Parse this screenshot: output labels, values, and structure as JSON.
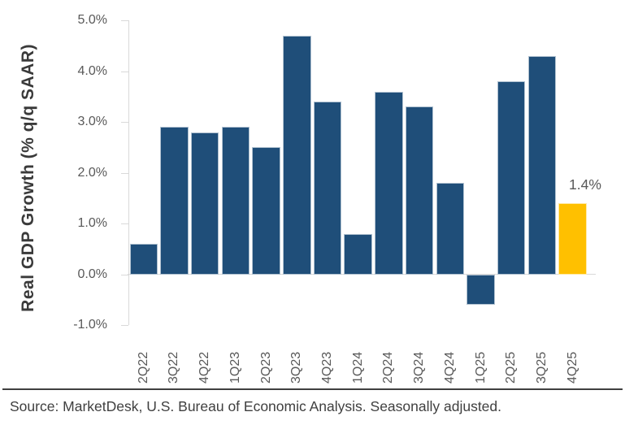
{
  "chart_data": {
    "type": "bar",
    "title": "",
    "xlabel": "",
    "ylabel": "Real GDP Growth (% q/q SAAR)",
    "categories": [
      "2Q22",
      "3Q22",
      "4Q22",
      "1Q23",
      "2Q23",
      "3Q23",
      "4Q23",
      "1Q24",
      "2Q24",
      "3Q24",
      "4Q24",
      "1Q25",
      "2Q25",
      "3Q25",
      "4Q25"
    ],
    "values": [
      0.6,
      2.9,
      2.8,
      2.9,
      2.5,
      4.7,
      3.4,
      0.8,
      3.6,
      3.3,
      1.8,
      -0.6,
      3.8,
      4.3,
      1.4
    ],
    "ylim": [
      -1.0,
      5.0
    ],
    "yticks": [
      5.0,
      4.0,
      3.0,
      2.0,
      1.0,
      0.0,
      -1.0
    ],
    "ytick_labels": [
      "5.0%",
      "4.0%",
      "3.0%",
      "2.0%",
      "1.0%",
      "0.0%",
      "-1.0%"
    ],
    "grid": false,
    "legend": null,
    "bar_color": "#1F4E79",
    "highlight_color": "#FFC000",
    "highlight_index": 14,
    "annotation": {
      "text": "1.4%",
      "target_category": "4Q25"
    }
  },
  "footer": {
    "source_text": "Source: MarketDesk, U.S. Bureau of Economic Analysis. Seasonally adjusted."
  }
}
